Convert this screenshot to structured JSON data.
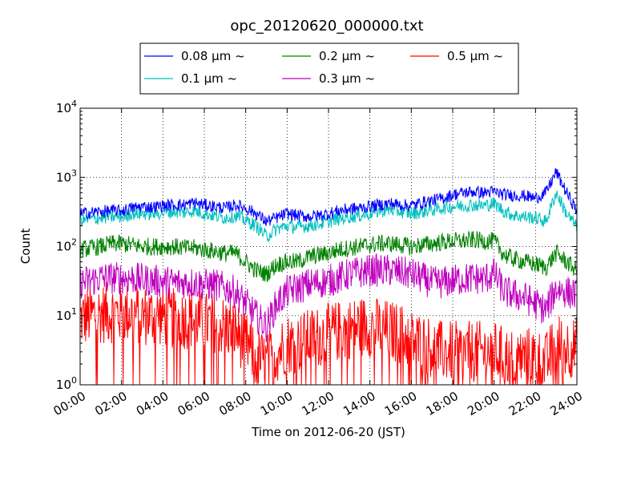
{
  "chart_data": {
    "type": "line",
    "title": "opc_20120620_000000.txt",
    "xlabel": "Time on 2012-06-20 (JST)",
    "ylabel": "Count",
    "yscale": "log",
    "ylim": [
      1,
      10000
    ],
    "xlim": [
      "00:00",
      "24:00"
    ],
    "x_ticks": [
      "00:00",
      "02:00",
      "04:00",
      "06:00",
      "08:00",
      "10:00",
      "12:00",
      "14:00",
      "16:00",
      "18:00",
      "20:00",
      "22:00",
      "24:00"
    ],
    "y_ticks": [
      {
        "value": 1,
        "base": "10",
        "exp": "0"
      },
      {
        "value": 10,
        "base": "10",
        "exp": "1"
      },
      {
        "value": 100,
        "base": "10",
        "exp": "2"
      },
      {
        "value": 1000,
        "base": "10",
        "exp": "3"
      },
      {
        "value": 10000,
        "base": "10",
        "exp": "4"
      }
    ],
    "grid": true,
    "legend_position": "top-center",
    "x_hours": [
      0,
      0.5,
      1,
      1.5,
      2,
      2.5,
      3,
      3.5,
      4,
      4.5,
      5,
      5.5,
      6,
      6.5,
      7,
      7.5,
      8,
      8.5,
      9,
      9.5,
      10,
      10.5,
      11,
      11.5,
      12,
      12.5,
      13,
      13.5,
      14,
      14.5,
      15,
      15.5,
      16,
      16.5,
      17,
      17.5,
      18,
      18.5,
      19,
      19.5,
      20,
      20.5,
      21,
      21.5,
      22,
      22.5,
      23,
      23.5,
      24
    ],
    "series": [
      {
        "name": "0.08 μm ~",
        "color": "#0000ff",
        "values": [
          300,
          310,
          320,
          330,
          330,
          360,
          380,
          370,
          390,
          400,
          400,
          430,
          400,
          380,
          360,
          400,
          360,
          300,
          230,
          260,
          300,
          280,
          270,
          280,
          300,
          330,
          350,
          360,
          380,
          400,
          420,
          400,
          390,
          430,
          460,
          500,
          560,
          600,
          620,
          600,
          620,
          560,
          550,
          540,
          500,
          600,
          1200,
          600,
          330
        ]
      },
      {
        "name": "0.1 μm ~",
        "color": "#00bfbf",
        "values": [
          240,
          250,
          260,
          270,
          270,
          300,
          300,
          300,
          310,
          320,
          310,
          330,
          300,
          280,
          260,
          280,
          240,
          200,
          140,
          180,
          200,
          190,
          200,
          210,
          230,
          250,
          270,
          280,
          300,
          330,
          340,
          320,
          300,
          320,
          340,
          360,
          380,
          390,
          400,
          390,
          420,
          320,
          280,
          270,
          260,
          230,
          600,
          300,
          190
        ]
      },
      {
        "name": "0.2 μm ~",
        "color": "#008000",
        "values": [
          90,
          95,
          100,
          110,
          110,
          105,
          100,
          100,
          100,
          100,
          95,
          95,
          90,
          85,
          80,
          80,
          60,
          45,
          40,
          55,
          60,
          60,
          70,
          75,
          80,
          90,
          95,
          100,
          105,
          110,
          110,
          105,
          100,
          105,
          110,
          115,
          120,
          120,
          125,
          120,
          120,
          75,
          65,
          60,
          55,
          50,
          80,
          60,
          45
        ]
      },
      {
        "name": "0.3 μm ~",
        "color": "#bf00bf",
        "values": [
          30,
          32,
          35,
          35,
          35,
          35,
          33,
          32,
          31,
          30,
          30,
          30,
          28,
          28,
          25,
          22,
          15,
          10,
          7,
          15,
          22,
          25,
          28,
          30,
          32,
          35,
          40,
          42,
          45,
          45,
          45,
          42,
          40,
          35,
          30,
          30,
          32,
          34,
          35,
          34,
          40,
          22,
          20,
          18,
          15,
          12,
          25,
          22,
          20
        ]
      },
      {
        "name": "0.5 μm ~",
        "color": "#ff0000",
        "values": [
          9,
          10,
          11,
          11,
          11,
          11,
          10,
          10,
          10,
          9,
          9,
          9,
          8,
          8,
          7,
          6,
          4,
          2.5,
          2,
          3,
          4,
          4,
          4.5,
          5,
          5.5,
          6,
          6.5,
          7,
          7,
          6.5,
          6,
          5.5,
          4.5,
          4,
          3.5,
          3,
          3,
          3,
          3,
          3,
          3,
          2.5,
          2.5,
          2.5,
          2.5,
          2,
          4,
          3.5,
          3.5
        ]
      }
    ]
  }
}
